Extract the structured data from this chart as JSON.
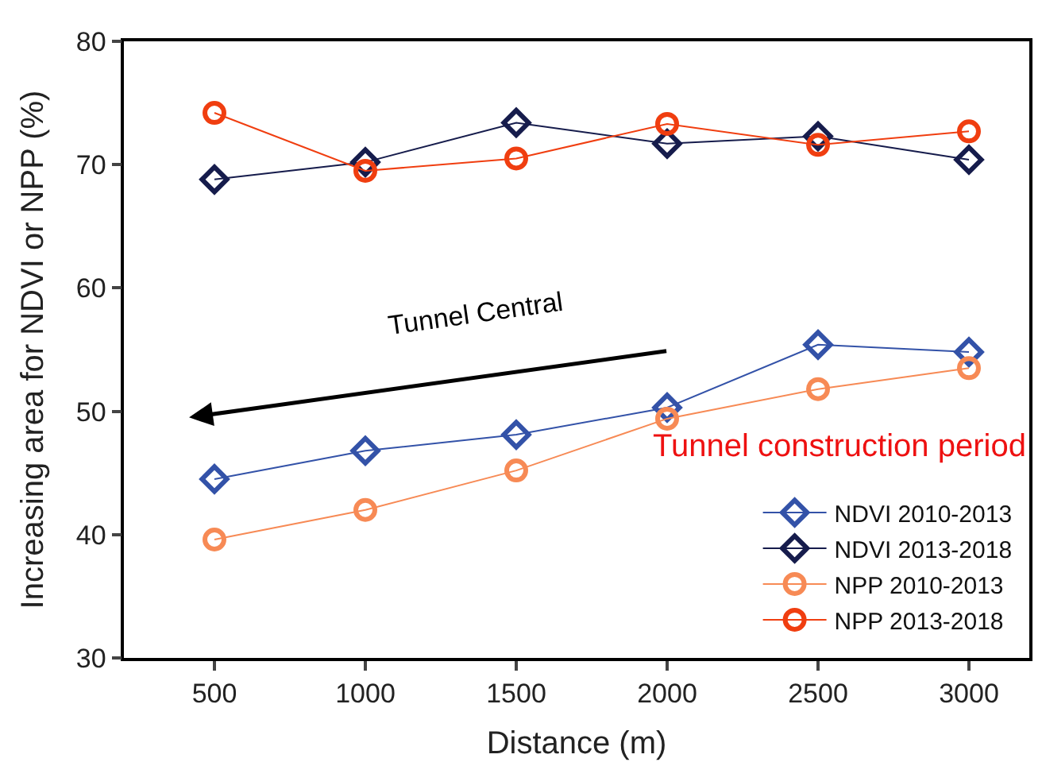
{
  "chart_data": {
    "type": "line",
    "xlabel": "Distance (m)",
    "ylabel": "Increasing area for NDVI or NPP (%)",
    "x": [
      500,
      1000,
      1500,
      2000,
      2500,
      3000
    ],
    "series": [
      {
        "name": "NDVI 2010-2013",
        "color": "#3352a8",
        "marker": "diamond",
        "values": [
          44.5,
          46.8,
          48.1,
          50.3,
          55.4,
          54.8
        ]
      },
      {
        "name": "NDVI 2013-2018",
        "color": "#161c4c",
        "marker": "diamond",
        "values": [
          68.8,
          70.2,
          73.4,
          71.7,
          72.3,
          70.4
        ]
      },
      {
        "name": "NPP 2010-2013",
        "color": "#f78a55",
        "marker": "circle",
        "values": [
          39.6,
          42.0,
          45.2,
          49.4,
          51.8,
          53.5
        ]
      },
      {
        "name": "NPP 2013-2018",
        "color": "#f03e10",
        "marker": "circle",
        "values": [
          74.2,
          69.5,
          70.5,
          73.3,
          71.6,
          72.7
        ]
      }
    ],
    "xlim": [
      200,
      3200
    ],
    "xticks": [
      500,
      1000,
      1500,
      2000,
      2500,
      3000
    ],
    "ylim": [
      30,
      80
    ],
    "yticks": [
      30,
      40,
      50,
      60,
      70,
      80
    ],
    "annotations": [
      "Tunnel Central",
      "Tunnel construction period"
    ],
    "legend": "bottom right",
    "line_style": "solid"
  }
}
